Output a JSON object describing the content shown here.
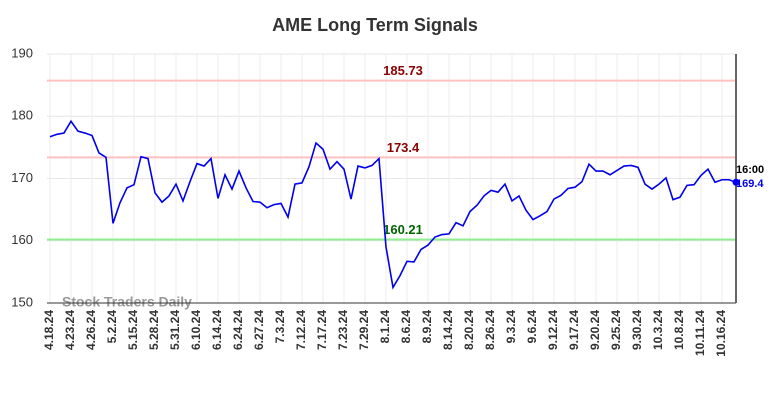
{
  "chart_data": {
    "type": "line",
    "title": "AME Long Term Signals",
    "watermark": "Stock Traders Daily",
    "categories": [
      "4.18.24",
      null,
      null,
      "4.23.24",
      null,
      null,
      "4.26.24",
      null,
      null,
      "5.2.24",
      null,
      null,
      "5.15.24",
      null,
      null,
      "5.28.24",
      null,
      null,
      "5.31.24",
      null,
      null,
      "6.10.24",
      null,
      null,
      "6.14.24",
      null,
      null,
      "6.24.24",
      null,
      null,
      "6.27.24",
      null,
      null,
      "7.3.24",
      null,
      null,
      "7.12.24",
      null,
      null,
      "7.17.24",
      null,
      null,
      "7.23.24",
      null,
      null,
      "7.29.24",
      null,
      null,
      "8.1.24",
      null,
      null,
      "8.6.24",
      null,
      null,
      "8.9.24",
      null,
      null,
      "8.14.24",
      null,
      null,
      "8.20.24",
      null,
      null,
      "8.26.24",
      null,
      null,
      "9.3.24",
      null,
      null,
      "9.6.24",
      null,
      null,
      "9.12.24",
      null,
      null,
      "9.17.24",
      null,
      null,
      "9.20.24",
      null,
      null,
      "9.25.24",
      null,
      null,
      "9.30.24",
      null,
      null,
      "10.3.24",
      null,
      null,
      "10.8.24",
      null,
      null,
      "10.11.24",
      null,
      null,
      "10.16.24",
      null,
      null
    ],
    "series": [
      {
        "color": "#0000ee",
        "values": [
          176.7,
          177.1,
          177.3,
          179.2,
          177.6,
          177.3,
          176.9,
          174.1,
          173.4,
          162.8,
          166.1,
          168.5,
          169.0,
          173.5,
          173.2,
          167.7,
          166.2,
          167.2,
          169.1,
          166.4,
          169.5,
          172.4,
          172.0,
          173.2,
          166.8,
          170.6,
          168.3,
          171.2,
          168.5,
          166.3,
          166.2,
          165.3,
          165.8,
          166.0,
          163.8,
          169.1,
          169.3,
          171.9,
          175.7,
          174.7,
          171.5,
          172.7,
          171.5,
          166.7,
          172.0,
          171.7,
          172.1,
          173.2,
          159.0,
          152.5,
          154.4,
          156.7,
          156.6,
          158.6,
          159.3,
          160.6,
          161.0,
          161.1,
          162.9,
          162.4,
          164.7,
          165.7,
          167.2,
          168.1,
          167.8,
          169.1,
          166.4,
          167.2,
          164.9,
          163.4,
          164.0,
          164.7,
          166.7,
          167.3,
          168.4,
          168.6,
          169.5,
          172.3,
          171.2,
          171.2,
          170.6,
          171.3,
          172.0,
          172.1,
          171.8,
          169.1,
          168.3,
          169.1,
          170.1,
          166.6,
          167.0,
          168.9,
          169.0,
          170.5,
          171.5,
          169.4,
          169.8,
          169.8,
          169.4
        ]
      }
    ],
    "ylim": [
      150,
      190
    ],
    "yticks": [
      150,
      160,
      170,
      180,
      190
    ],
    "grid": true,
    "hlines": [
      {
        "value": 185.73,
        "color": "#ffc0c0",
        "text_color": "#8b0000"
      },
      {
        "value": 173.4,
        "color": "#ffc0c0",
        "text_color": "#8b0000"
      },
      {
        "value": 160.21,
        "color": "#90ee90",
        "text_color": "#006400"
      }
    ],
    "end_label": {
      "time": "16:00",
      "value": 169.4
    }
  }
}
